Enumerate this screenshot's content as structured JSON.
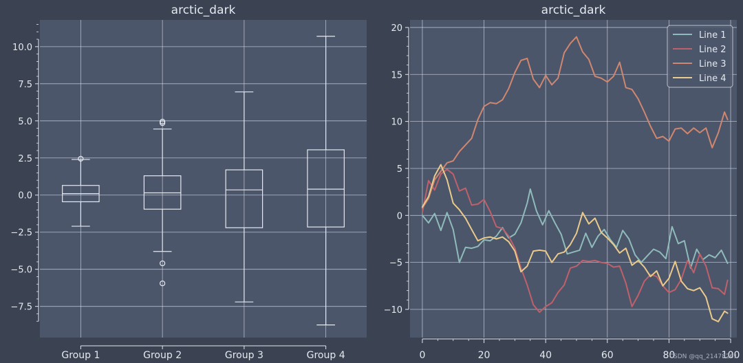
{
  "theme": {
    "figure_bg": "#3b4252",
    "axes_bg": "#4c566a",
    "text": "#e5e9f0",
    "grid": "#d8dee9",
    "box": "#e5e9f0"
  },
  "watermark": "CSDN @qq_21478261",
  "chart_data": [
    {
      "type": "box",
      "title": "arctic_dark",
      "xlabel": "",
      "ylabel": "",
      "categories": [
        "Group 1",
        "Group 2",
        "Group 3",
        "Group 4"
      ],
      "ylim": [
        -9.6,
        11.8
      ],
      "yticks": [
        -7.5,
        -5.0,
        -2.5,
        0.0,
        2.5,
        5.0,
        7.5,
        10.0
      ],
      "ytick_labels": [
        "−7.5",
        "−5.0",
        "−2.5",
        "0.0",
        "2.5",
        "5.0",
        "7.5",
        "10.0"
      ],
      "grid": true,
      "boxes": [
        {
          "name": "Group 1",
          "whislo": -2.1,
          "q1": -0.45,
          "med": 0.1,
          "q3": 0.65,
          "whishi": 2.4,
          "fliers": [
            2.45
          ]
        },
        {
          "name": "Group 2",
          "whislo": -3.8,
          "q1": -0.95,
          "med": 0.15,
          "q3": 1.3,
          "whishi": 4.45,
          "fliers": [
            4.85,
            4.95,
            -4.6,
            -5.95
          ]
        },
        {
          "name": "Group 3",
          "whislo": -7.2,
          "q1": -2.2,
          "med": 0.35,
          "q3": 1.7,
          "whishi": 6.95,
          "fliers": []
        },
        {
          "name": "Group 4",
          "whislo": -8.75,
          "q1": -2.15,
          "med": 0.4,
          "q3": 3.05,
          "whishi": 10.7,
          "fliers": []
        }
      ]
    },
    {
      "type": "line",
      "title": "arctic_dark",
      "xlabel": "",
      "ylabel": "",
      "xlim": [
        -4,
        102
      ],
      "ylim": [
        -13,
        20.8
      ],
      "xticks": [
        0,
        20,
        40,
        60,
        80,
        100
      ],
      "yticks": [
        -10,
        -5,
        0,
        5,
        10,
        15,
        20
      ],
      "ytick_labels": [
        "−10",
        "−5",
        "0",
        "5",
        "10",
        "15",
        "20"
      ],
      "grid": true,
      "legend": "top-right",
      "series": [
        {
          "name": "Line 1",
          "color": "#8fbcbb",
          "points": [
            [
              0,
              0
            ],
            [
              2,
              -0.8
            ],
            [
              4,
              0.2
            ],
            [
              6,
              -1.6
            ],
            [
              8,
              0.3
            ],
            [
              10,
              -1.5
            ],
            [
              12,
              -5
            ],
            [
              14,
              -3.4
            ],
            [
              16,
              -3.5
            ],
            [
              18,
              -3.3
            ],
            [
              20,
              -2.6
            ],
            [
              22,
              -2.7
            ],
            [
              24,
              -2.2
            ],
            [
              26,
              -1.3
            ],
            [
              28,
              -2.4
            ],
            [
              30,
              -2
            ],
            [
              32,
              -0.8
            ],
            [
              34,
              1.3
            ],
            [
              35,
              2.8
            ],
            [
              37,
              0.5
            ],
            [
              39,
              -1
            ],
            [
              41,
              0.5
            ],
            [
              43,
              -0.8
            ],
            [
              45,
              -2
            ],
            [
              47,
              -4.1
            ],
            [
              49,
              -3.9
            ],
            [
              51,
              -3.7
            ],
            [
              53,
              -1.9
            ],
            [
              55,
              -3.4
            ],
            [
              57,
              -2.2
            ],
            [
              59,
              -1.5
            ],
            [
              61,
              -2.6
            ],
            [
              63,
              -3.4
            ],
            [
              65,
              -1.6
            ],
            [
              67,
              -2.5
            ],
            [
              69,
              -4.2
            ],
            [
              71,
              -5
            ],
            [
              73,
              -4.3
            ],
            [
              75,
              -3.6
            ],
            [
              77,
              -3.9
            ],
            [
              79,
              -4.6
            ],
            [
              81,
              -1.2
            ],
            [
              83,
              -3
            ],
            [
              85,
              -2.7
            ],
            [
              87,
              -5.6
            ],
            [
              89,
              -3.6
            ],
            [
              91,
              -4.7
            ],
            [
              93,
              -4.2
            ],
            [
              95,
              -4.5
            ],
            [
              97,
              -3.7
            ],
            [
              99,
              -5.1
            ]
          ]
        },
        {
          "name": "Line 2",
          "color": "#bf616a",
          "points": [
            [
              0,
              0.3
            ],
            [
              2,
              3.7
            ],
            [
              4,
              2.7
            ],
            [
              6,
              4.4
            ],
            [
              8,
              4.9
            ],
            [
              10,
              4.4
            ],
            [
              12,
              2.6
            ],
            [
              14,
              2.9
            ],
            [
              16,
              1.1
            ],
            [
              18,
              1.2
            ],
            [
              20,
              1.7
            ],
            [
              22,
              0.4
            ],
            [
              24,
              -1.2
            ],
            [
              26,
              -1.4
            ],
            [
              28,
              -2.2
            ],
            [
              30,
              -3.5
            ],
            [
              32,
              -5.6
            ],
            [
              34,
              -7.4
            ],
            [
              36,
              -9.5
            ],
            [
              38,
              -10.3
            ],
            [
              40,
              -9.7
            ],
            [
              42,
              -9.3
            ],
            [
              44,
              -8.2
            ],
            [
              46,
              -7.4
            ],
            [
              48,
              -5.6
            ],
            [
              50,
              -5.4
            ],
            [
              52,
              -4.8
            ],
            [
              54,
              -4.9
            ],
            [
              56,
              -4.8
            ],
            [
              58,
              -5
            ],
            [
              60,
              -5.1
            ],
            [
              62,
              -5.5
            ],
            [
              64,
              -5.4
            ],
            [
              66,
              -7.2
            ],
            [
              68,
              -9.7
            ],
            [
              70,
              -8.5
            ],
            [
              72,
              -7
            ],
            [
              74,
              -6.3
            ],
            [
              76,
              -6.5
            ],
            [
              78,
              -7.5
            ],
            [
              80,
              -8.2
            ],
            [
              82,
              -7.9
            ],
            [
              84,
              -6.8
            ],
            [
              86,
              -4.8
            ],
            [
              88,
              -6.1
            ],
            [
              90,
              -4.1
            ],
            [
              92,
              -5.4
            ],
            [
              94,
              -7.7
            ],
            [
              96,
              -7.8
            ],
            [
              98,
              -8.4
            ],
            [
              99,
              -6.9
            ]
          ]
        },
        {
          "name": "Line 3",
          "color": "#d08770",
          "points": [
            [
              0,
              0.8
            ],
            [
              2,
              1.8
            ],
            [
              4,
              3.8
            ],
            [
              6,
              4.7
            ],
            [
              8,
              5.6
            ],
            [
              10,
              5.8
            ],
            [
              12,
              6.8
            ],
            [
              14,
              7.5
            ],
            [
              16,
              8.2
            ],
            [
              18,
              10.2
            ],
            [
              20,
              11.6
            ],
            [
              22,
              12
            ],
            [
              24,
              11.9
            ],
            [
              26,
              12.3
            ],
            [
              28,
              13.5
            ],
            [
              30,
              15.2
            ],
            [
              32,
              16.5
            ],
            [
              34,
              16.7
            ],
            [
              36,
              14.5
            ],
            [
              38,
              13.6
            ],
            [
              40,
              14.9
            ],
            [
              42,
              13.9
            ],
            [
              44,
              14.6
            ],
            [
              46,
              17.3
            ],
            [
              48,
              18.3
            ],
            [
              50,
              19
            ],
            [
              52,
              17.4
            ],
            [
              54,
              16.6
            ],
            [
              56,
              14.8
            ],
            [
              58,
              14.6
            ],
            [
              60,
              14.2
            ],
            [
              62,
              14.8
            ],
            [
              64,
              16.3
            ],
            [
              66,
              13.6
            ],
            [
              68,
              13.4
            ],
            [
              70,
              12.4
            ],
            [
              72,
              11
            ],
            [
              74,
              9.5
            ],
            [
              76,
              8.2
            ],
            [
              78,
              8.4
            ],
            [
              80,
              7.9
            ],
            [
              82,
              9.2
            ],
            [
              84,
              9.3
            ],
            [
              86,
              8.7
            ],
            [
              88,
              9.3
            ],
            [
              90,
              8.8
            ],
            [
              92,
              9.3
            ],
            [
              94,
              7.2
            ],
            [
              96,
              8.8
            ],
            [
              98,
              11
            ],
            [
              99,
              10.2
            ]
          ]
        },
        {
          "name": "Line 4",
          "color": "#ebcb8b",
          "points": [
            [
              0,
              0.9
            ],
            [
              2,
              2
            ],
            [
              4,
              4.2
            ],
            [
              6,
              5.4
            ],
            [
              8,
              3.8
            ],
            [
              10,
              1.3
            ],
            [
              12,
              0.6
            ],
            [
              14,
              -0.3
            ],
            [
              16,
              -1.5
            ],
            [
              18,
              -2.7
            ],
            [
              20,
              -2.4
            ],
            [
              22,
              -2.3
            ],
            [
              24,
              -2.5
            ],
            [
              26,
              -2.3
            ],
            [
              28,
              -2.8
            ],
            [
              30,
              -3.8
            ],
            [
              32,
              -6
            ],
            [
              34,
              -5.4
            ],
            [
              36,
              -3.8
            ],
            [
              38,
              -3.7
            ],
            [
              40,
              -3.8
            ],
            [
              42,
              -5
            ],
            [
              44,
              -4.1
            ],
            [
              46,
              -3.9
            ],
            [
              48,
              -3.1
            ],
            [
              50,
              -1.9
            ],
            [
              52,
              0.3
            ],
            [
              54,
              -0.9
            ],
            [
              56,
              -0.3
            ],
            [
              58,
              -1.8
            ],
            [
              60,
              -2.4
            ],
            [
              62,
              -3.1
            ],
            [
              64,
              -4
            ],
            [
              66,
              -3.5
            ],
            [
              68,
              -5.3
            ],
            [
              70,
              -4.8
            ],
            [
              72,
              -5.5
            ],
            [
              74,
              -6.5
            ],
            [
              76,
              -5.9
            ],
            [
              78,
              -7.5
            ],
            [
              80,
              -6.7
            ],
            [
              82,
              -4.9
            ],
            [
              84,
              -7
            ],
            [
              86,
              -7.8
            ],
            [
              88,
              -8
            ],
            [
              90,
              -7.7
            ],
            [
              92,
              -8.7
            ],
            [
              94,
              -11
            ],
            [
              96,
              -11.3
            ],
            [
              98,
              -10.2
            ],
            [
              99,
              -10.4
            ]
          ]
        }
      ]
    }
  ]
}
